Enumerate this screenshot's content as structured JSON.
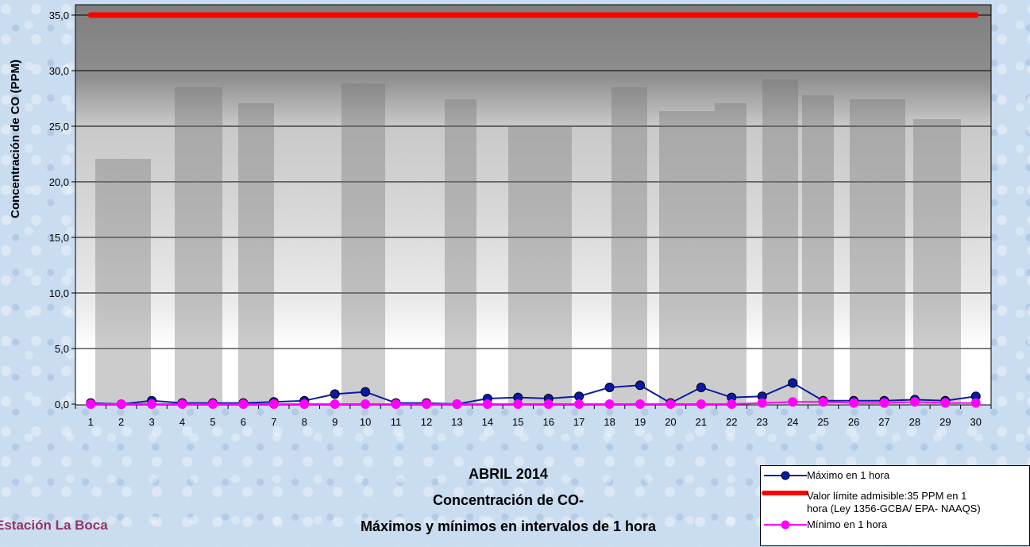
{
  "chart_data": {
    "type": "line",
    "title": [
      "ABRIL 2014",
      "Concentración de CO-",
      "Máximos y mínimos en intervalos de 1 hora"
    ],
    "ylabel": "Concentración de CO (PPM)",
    "xlabel": "",
    "ylim": [
      0,
      35
    ],
    "yticks": [
      "0,0",
      "5,0",
      "10,0",
      "15,0",
      "20,0",
      "25,0",
      "30,0",
      "35,0"
    ],
    "categories": [
      "1",
      "2",
      "3",
      "4",
      "5",
      "6",
      "7",
      "8",
      "9",
      "10",
      "11",
      "12",
      "13",
      "14",
      "15",
      "16",
      "17",
      "18",
      "19",
      "20",
      "21",
      "22",
      "23",
      "24",
      "25",
      "26",
      "27",
      "28",
      "29",
      "30"
    ],
    "grid": true,
    "legend_position": "bottom-right",
    "series": [
      {
        "name": "Máximo en 1 hora",
        "color": "#0a1aa8",
        "marker": "circle",
        "values": [
          0.1,
          0.0,
          0.3,
          0.1,
          0.1,
          0.1,
          0.2,
          0.3,
          0.9,
          1.1,
          0.1,
          0.1,
          0.0,
          0.5,
          0.6,
          0.5,
          0.7,
          1.5,
          1.7,
          0.1,
          1.5,
          0.6,
          0.7,
          1.9,
          0.3,
          0.3,
          0.3,
          0.4,
          0.3,
          0.7
        ]
      },
      {
        "name": "Valor límite admisible:35 PPM en 1 hora (Ley 1356-GCBA/ EPA- NAAQS)",
        "name_lines": [
          "Valor límite admisible:35 PPM en 1",
          "hora (Ley 1356-GCBA/ EPA- NAAQS)"
        ],
        "color": "#ff0000",
        "marker": "none",
        "values": [
          35,
          35,
          35,
          35,
          35,
          35,
          35,
          35,
          35,
          35,
          35,
          35,
          35,
          35,
          35,
          35,
          35,
          35,
          35,
          35,
          35,
          35,
          35,
          35,
          35,
          35,
          35,
          35,
          35,
          35
        ]
      },
      {
        "name": "Mínimo en 1 hora",
        "color": "#ff00ff",
        "marker": "circle",
        "values": [
          0.0,
          0.0,
          0.0,
          0.0,
          0.0,
          0.0,
          0.0,
          0.0,
          0.0,
          0.0,
          0.0,
          0.0,
          0.0,
          0.0,
          0.0,
          0.0,
          0.0,
          0.0,
          0.0,
          0.0,
          0.0,
          0.0,
          0.1,
          0.2,
          0.2,
          0.1,
          0.1,
          0.2,
          0.1,
          0.1
        ]
      }
    ]
  },
  "station_label": "Estación La Boca"
}
